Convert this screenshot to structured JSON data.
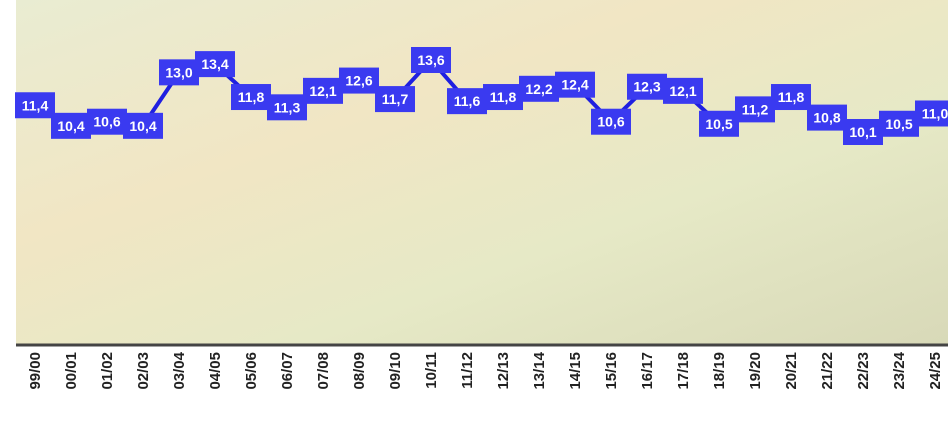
{
  "chart_data": {
    "type": "line",
    "categories": [
      "99/00",
      "00/01",
      "01/02",
      "02/03",
      "03/04",
      "04/05",
      "05/06",
      "06/07",
      "07/08",
      "08/09",
      "09/10",
      "10/11",
      "11/12",
      "12/13",
      "13/14",
      "14/15",
      "15/16",
      "16/17",
      "17/18",
      "18/19",
      "19/20",
      "20/21",
      "21/22",
      "22/23",
      "23/24",
      "24/25"
    ],
    "values": [
      11.4,
      10.4,
      10.6,
      10.4,
      13.0,
      13.4,
      11.8,
      11.3,
      12.1,
      12.6,
      11.7,
      13.6,
      11.6,
      11.8,
      12.2,
      12.4,
      10.6,
      12.3,
      12.1,
      10.5,
      11.2,
      11.8,
      10.8,
      10.1,
      10.5,
      11.0
    ],
    "value_labels": [
      "11,4",
      "10,4",
      "10,6",
      "10,4",
      "13,0",
      "13,4",
      "11,8",
      "11,3",
      "12,1",
      "12,6",
      "11,7",
      "13,6",
      "11,6",
      "11,8",
      "12,2",
      "12,4",
      "10,6",
      "12,3",
      "12,1",
      "10,5",
      "11,2",
      "11,8",
      "10,8",
      "10,1",
      "10,5",
      "11,0"
    ],
    "color": "#1f1fe0",
    "label_color": "#3a3af0"
  }
}
